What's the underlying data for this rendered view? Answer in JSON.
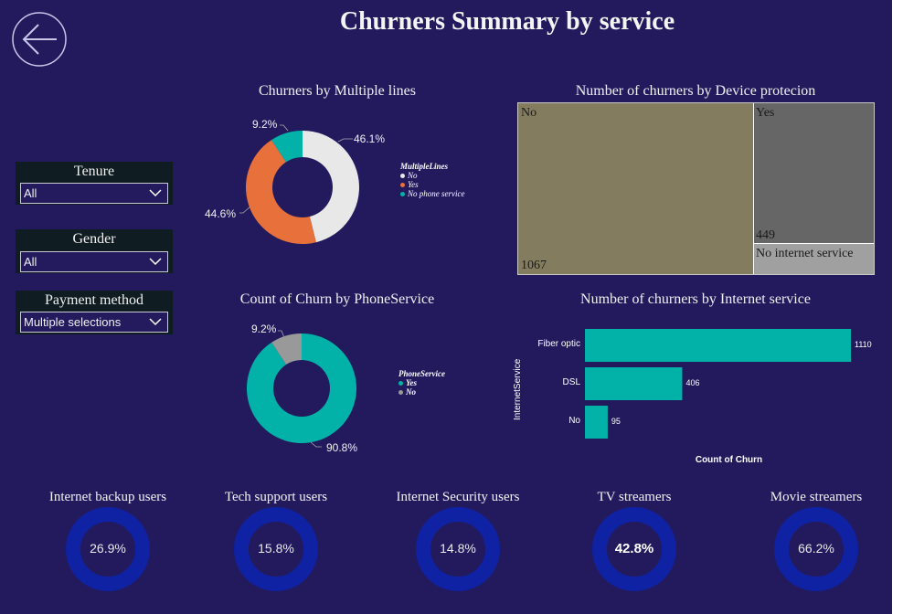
{
  "page": {
    "title": "Churners Summary by service",
    "back_icon": "arrow-left-icon",
    "background": "#231a5e"
  },
  "slicers": [
    {
      "label": "Tenure",
      "value": "All"
    },
    {
      "label": "Gender",
      "value": "All"
    },
    {
      "label": "Payment method",
      "value": "Multiple selections"
    }
  ],
  "chart_data": [
    {
      "id": "multiple-lines",
      "type": "pie",
      "variant": "donut",
      "title": "Churners by Multiple lines",
      "legend_title": "MultipleLines",
      "legend_position": "right",
      "slices": [
        {
          "label": "No",
          "value": 46.1,
          "display": "46.1%",
          "color": "#e8e8e8"
        },
        {
          "label": "Yes",
          "value": 44.6,
          "display": "44.6%",
          "color": "#e8703a"
        },
        {
          "label": "No phone service",
          "value": 9.2,
          "display": "9.2%",
          "color": "#02b2a8"
        }
      ]
    },
    {
      "id": "phone-service",
      "type": "pie",
      "variant": "donut",
      "title": "Count of Churn by PhoneService",
      "legend_title": "PhoneService",
      "legend_position": "right",
      "slices": [
        {
          "label": "Yes",
          "value": 90.8,
          "display": "90.8%",
          "color": "#02b2a8"
        },
        {
          "label": "No",
          "value": 9.2,
          "display": "9.2%",
          "color": "#999999"
        }
      ]
    },
    {
      "id": "device-protection",
      "type": "treemap",
      "title": "Number of churners by Device protecion",
      "items": [
        {
          "label": "No",
          "value": 1067,
          "display": "1067",
          "color": "#837c5e"
        },
        {
          "label": "Yes",
          "value": 449,
          "display": "449",
          "color": "#666666"
        },
        {
          "label": "No internet service",
          "value": null,
          "display": "",
          "color": "#a0a0a0"
        }
      ]
    },
    {
      "id": "internet-service",
      "type": "bar",
      "orientation": "horizontal",
      "title": "Number of churners by Internet service",
      "xlabel": "Count of Churn",
      "ylabel": "InternetService",
      "categories": [
        "Fiber optic",
        "DSL",
        "No"
      ],
      "values": [
        1110,
        406,
        95
      ],
      "color": "#02b2a8"
    },
    {
      "id": "kpi-rings",
      "type": "pie",
      "variant": "ring-gauge",
      "items": [
        {
          "title": "Internet backup users",
          "value": 26.9,
          "display": "26.9%"
        },
        {
          "title": "Tech support users",
          "value": 15.8,
          "display": "15.8%"
        },
        {
          "title": "Internet Security users",
          "value": 14.8,
          "display": "14.8%"
        },
        {
          "title": "TV streamers",
          "value": 42.8,
          "display": "42.8%",
          "bold": true
        },
        {
          "title": "Movie streamers",
          "value": 66.2,
          "display": "66.2%"
        }
      ],
      "ring_color": "#0e22a3"
    }
  ]
}
